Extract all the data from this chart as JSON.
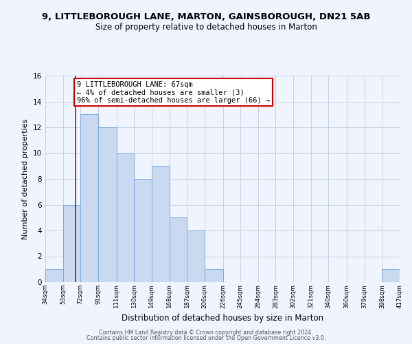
{
  "title1": "9, LITTLEBOROUGH LANE, MARTON, GAINSBOROUGH, DN21 5AB",
  "title2": "Size of property relative to detached houses in Marton",
  "xlabel": "Distribution of detached houses by size in Marton",
  "ylabel": "Number of detached properties",
  "bar_color": "#c9d9f0",
  "bar_edge_color": "#7aaae0",
  "bg_color": "#f0f4ff",
  "grid_color": "#c0cce0",
  "bin_edges": [
    34,
    53,
    72,
    91,
    111,
    130,
    149,
    168,
    187,
    206,
    226,
    245,
    264,
    283,
    302,
    321,
    340,
    360,
    379,
    398,
    417
  ],
  "bin_labels": [
    "34sqm",
    "53sqm",
    "72sqm",
    "91sqm",
    "111sqm",
    "130sqm",
    "149sqm",
    "168sqm",
    "187sqm",
    "206sqm",
    "226sqm",
    "245sqm",
    "264sqm",
    "283sqm",
    "302sqm",
    "321sqm",
    "340sqm",
    "360sqm",
    "379sqm",
    "398sqm",
    "417sqm"
  ],
  "counts": [
    1,
    6,
    13,
    12,
    10,
    8,
    9,
    5,
    4,
    1,
    0,
    0,
    0,
    0,
    0,
    0,
    0,
    0,
    0,
    1
  ],
  "ylim": [
    0,
    16
  ],
  "yticks": [
    0,
    2,
    4,
    6,
    8,
    10,
    12,
    14,
    16
  ],
  "property_line_x": 67,
  "property_line_color": "#cc0000",
  "annotation_line1": "9 LITTLEBOROUGH LANE: 67sqm",
  "annotation_line2": "← 4% of detached houses are smaller (3)",
  "annotation_line3": "96% of semi-detached houses are larger (66) →",
  "annotation_box_color": "#cc0000",
  "footer1": "Contains HM Land Registry data © Crown copyright and database right 2024.",
  "footer2": "Contains public sector information licensed under the Open Government Licence v3.0."
}
